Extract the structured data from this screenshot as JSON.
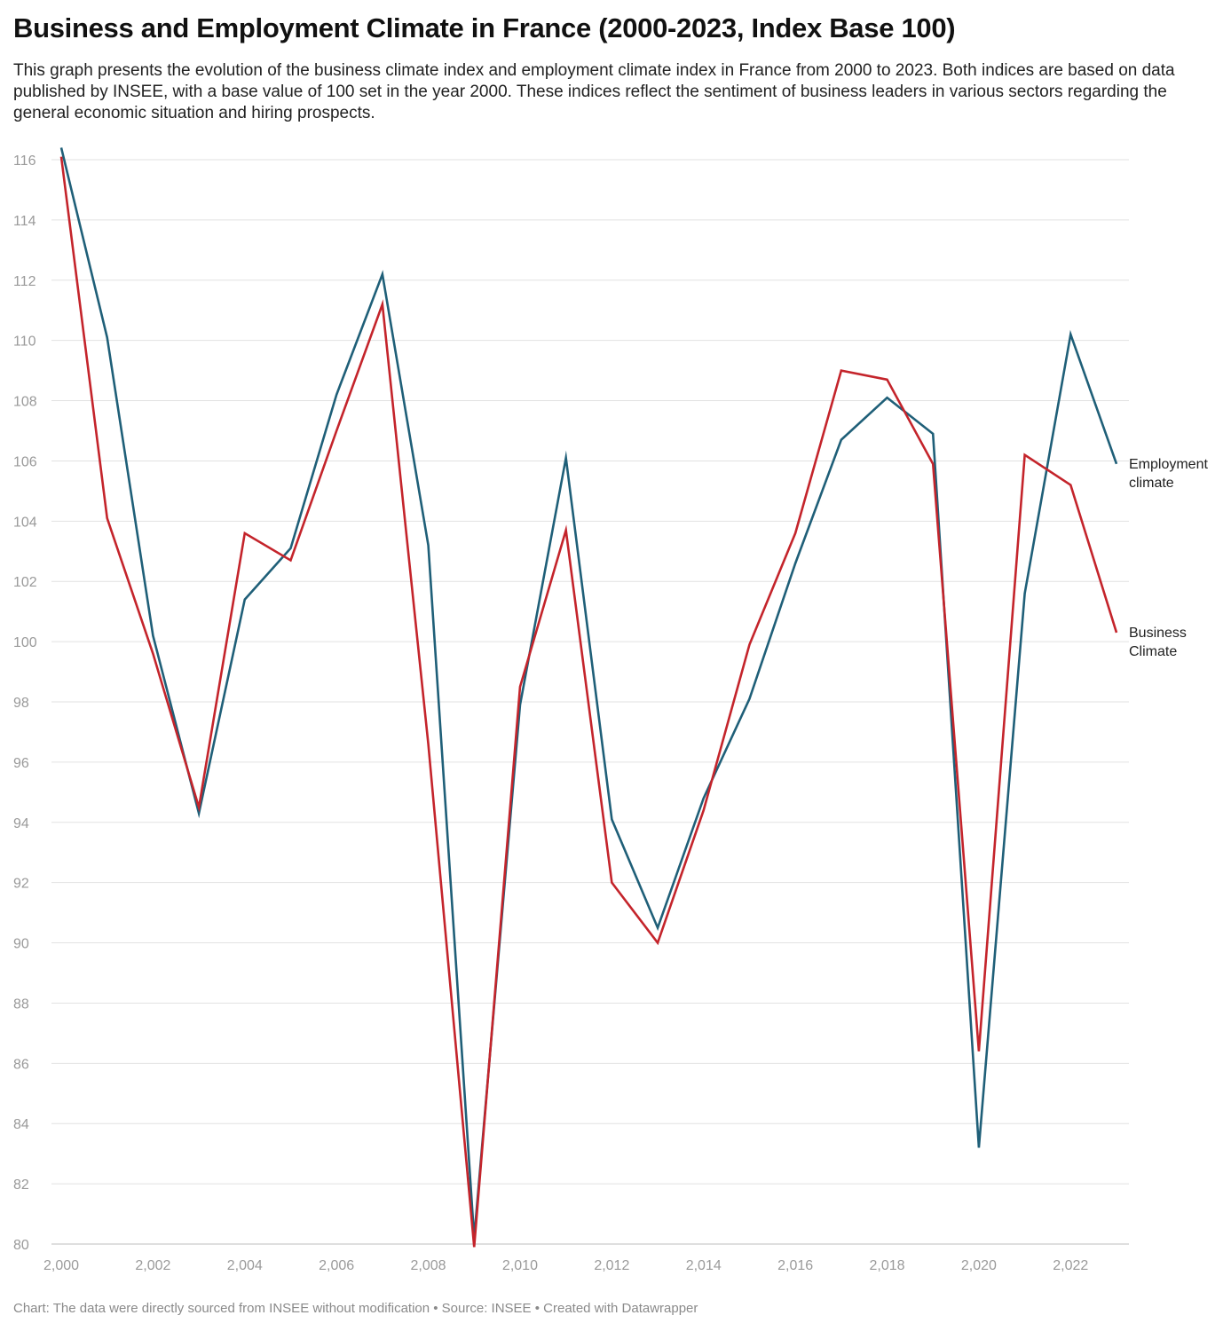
{
  "header": {
    "title": "Business and Employment Climate in France (2000-2023, Index Base 100)",
    "description": "This graph presents the evolution of the business climate index and employment climate index in France from 2000 to 2023. Both indices are based on data published by INSEE, with a base value of 100 set in the year 2000. These indices reflect the sentiment of business leaders in various sectors regarding the general economic situation and hiring prospects."
  },
  "footer": {
    "text": "Chart: The data were directly sourced from INSEE without modification • Source: INSEE • Created with Datawrapper"
  },
  "colors": {
    "employment": "#1f5f78",
    "business": "#c4242b"
  },
  "chart_data": {
    "type": "line",
    "title": "Business and Employment Climate in France (2000-2023, Index Base 100)",
    "xlabel": "",
    "ylabel": "",
    "x": [
      2000,
      2001,
      2002,
      2003,
      2004,
      2005,
      2006,
      2007,
      2008,
      2009,
      2010,
      2011,
      2012,
      2013,
      2014,
      2015,
      2016,
      2017,
      2018,
      2019,
      2020,
      2021,
      2022,
      2023
    ],
    "xlim": [
      2000,
      2023
    ],
    "ylim": [
      80,
      116
    ],
    "x_ticks": [
      2000,
      2002,
      2004,
      2006,
      2008,
      2010,
      2012,
      2014,
      2016,
      2018,
      2020,
      2022
    ],
    "x_tick_labels": [
      "2,000",
      "2,002",
      "2,004",
      "2,006",
      "2,008",
      "2,010",
      "2,012",
      "2,014",
      "2,016",
      "2,018",
      "2,020",
      "2,022"
    ],
    "y_ticks": [
      80,
      82,
      84,
      86,
      88,
      90,
      92,
      94,
      96,
      98,
      100,
      102,
      104,
      106,
      108,
      110,
      112,
      114,
      116
    ],
    "y_tick_labels": [
      "80",
      "82",
      "84",
      "86",
      "88",
      "90",
      "92",
      "94",
      "96",
      "98",
      "100",
      "102",
      "104",
      "106",
      "108",
      "110",
      "112",
      "114",
      "116"
    ],
    "grid": true,
    "series": [
      {
        "name": "Employment climate",
        "label_lines": [
          "Employment",
          "climate"
        ],
        "color": "#1f5f78",
        "values": [
          116.4,
          110.1,
          100.2,
          94.3,
          101.4,
          103.1,
          108.2,
          112.2,
          103.2,
          80.2,
          97.9,
          106.1,
          94.1,
          90.5,
          94.8,
          98.1,
          102.6,
          106.7,
          108.1,
          106.9,
          83.2,
          101.6,
          110.2,
          105.9
        ]
      },
      {
        "name": "Business Climate",
        "label_lines": [
          "Business",
          "Climate"
        ],
        "color": "#c4242b",
        "values": [
          116.1,
          104.1,
          99.6,
          94.5,
          103.6,
          102.7,
          107.0,
          111.2,
          96.6,
          79.9,
          98.5,
          103.7,
          92.0,
          90.0,
          94.4,
          99.9,
          103.6,
          109.0,
          108.7,
          105.9,
          86.4,
          106.2,
          105.2,
          100.3
        ]
      }
    ]
  }
}
